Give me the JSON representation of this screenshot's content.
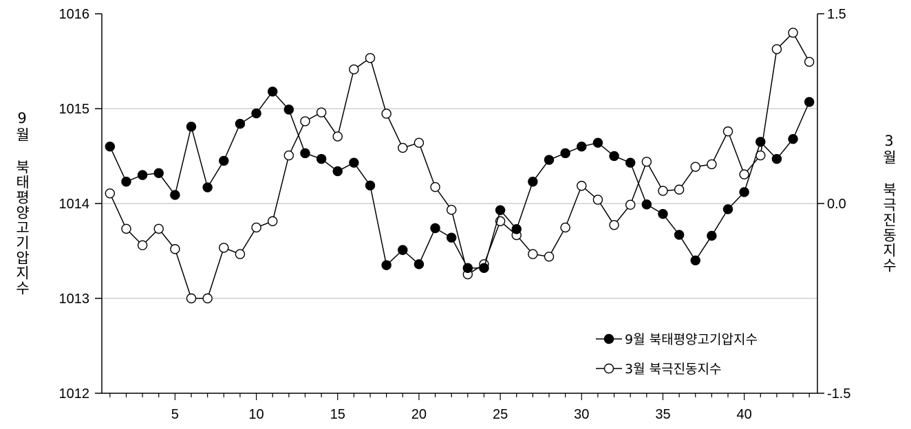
{
  "chart_data": {
    "type": "line",
    "xlabel": "",
    "ylabel": "9월 북태평양고기압지수",
    "ylabel_right": "3월 북극진동지수",
    "x": [
      1,
      2,
      3,
      4,
      5,
      6,
      7,
      8,
      9,
      10,
      11,
      12,
      13,
      14,
      15,
      16,
      17,
      18,
      19,
      20,
      21,
      22,
      23,
      24,
      25,
      26,
      27,
      28,
      29,
      30,
      31,
      32,
      33,
      34,
      35,
      36,
      37,
      38,
      39,
      40,
      41,
      42,
      43,
      44
    ],
    "xlim": [
      0.5,
      44.5
    ],
    "x_ticks": [
      5,
      10,
      15,
      20,
      25,
      30,
      35,
      40
    ],
    "ylim": [
      1012,
      1016
    ],
    "y_ticks": [
      "1012",
      "1013",
      "1014",
      "1015",
      "1016"
    ],
    "ylim_right": [
      -1.5,
      1.5
    ],
    "y_ticks_right": [
      "-1.5",
      "0.0",
      "1.5"
    ],
    "grid": "horizontal at y ticks",
    "legend_position": "bottom-right",
    "series": [
      {
        "name": "9월 북태평양고기압지수",
        "axis": "left",
        "marker": "filled",
        "color": "#000000",
        "values": [
          1014.6,
          1014.23,
          1014.3,
          1014.32,
          1014.09,
          1014.81,
          1014.17,
          1014.45,
          1014.84,
          1014.95,
          1015.18,
          1014.99,
          1014.53,
          1014.47,
          1014.34,
          1014.43,
          1014.19,
          1013.35,
          1013.51,
          1013.36,
          1013.74,
          1013.64,
          1013.32,
          1013.32,
          1013.93,
          1013.73,
          1014.23,
          1014.46,
          1014.53,
          1014.6,
          1014.64,
          1014.5,
          1014.43,
          1013.99,
          1013.89,
          1013.67,
          1013.4,
          1013.66,
          1013.94,
          1014.12,
          1014.65,
          1014.47,
          1014.68,
          1015.07
        ]
      },
      {
        "name": "3월 북극진동지수",
        "axis": "right",
        "marker": "open",
        "color": "#000000",
        "values": [
          0.08,
          -0.2,
          -0.33,
          -0.2,
          -0.36,
          -0.75,
          -0.75,
          -0.35,
          -0.4,
          -0.19,
          -0.14,
          0.38,
          0.65,
          0.72,
          0.53,
          1.06,
          1.15,
          0.71,
          0.44,
          0.48,
          0.13,
          -0.05,
          -0.56,
          -0.48,
          -0.14,
          -0.25,
          -0.4,
          -0.42,
          -0.19,
          0.14,
          0.03,
          -0.17,
          -0.01,
          0.33,
          0.1,
          0.11,
          0.29,
          0.31,
          0.57,
          0.23,
          0.38,
          1.22,
          1.35,
          1.12
        ]
      }
    ]
  }
}
